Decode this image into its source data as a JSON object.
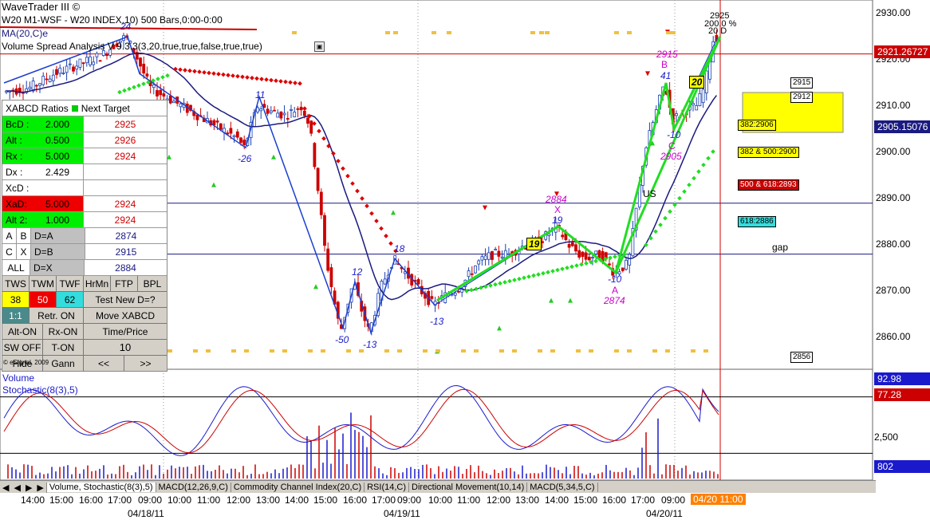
{
  "window": {
    "app_title": "WaveTrader III ©",
    "symbol_line": "W20 M1-WSF - W20 INDEX,10) 500 Bars,0:00-0:00",
    "study1": "MA(20,C)e",
    "study2": "Volume Spread Analysis V 9.3.3(3,20,true,true,false,true,true)"
  },
  "colors": {
    "up_bar": "#1a3fb0",
    "down_bar": "#cc0000",
    "ma_line": "#1a1a80",
    "wave_line": "#1a3fd0",
    "green_line": "#22dd22",
    "target_red": "#cc0000",
    "pink_label": "#cc00cc",
    "yellow_box": "#ffff00",
    "current_price_bg": "#cc0000",
    "current_time_bg": "#ff8000",
    "green_cell": "#00ee00",
    "red_cell": "#ee0000",
    "gray_cell": "#c0c0c0",
    "cyan_cell": "#33dddd"
  },
  "xabcd_panel": {
    "title": "XABCD Ratios",
    "next_target": "Next Target",
    "rows": [
      {
        "label": "BcD :",
        "value": "2.000",
        "target": "2925",
        "style": "green"
      },
      {
        "label": "Alt  :",
        "value": "0.500",
        "target": "2926",
        "style": "green"
      },
      {
        "label": "Rx  :",
        "value": "5.000",
        "target": "2924",
        "style": "green"
      },
      {
        "label": "Dx  :",
        "value": "2.429",
        "target": "",
        "style": "white"
      },
      {
        "label": "XcD :",
        "value": "",
        "target": "",
        "style": "white"
      },
      {
        "label": "XaD:",
        "value": "5.000",
        "target": "2924",
        "style": "red"
      },
      {
        "label": "Alt 2:",
        "value": "1.000",
        "target": "2924",
        "style": "green"
      }
    ],
    "map_rows": [
      {
        "a": "A",
        "b": "B",
        "eq": "D=A",
        "target": "2874"
      },
      {
        "a": "C",
        "b": "X",
        "eq": "D=B",
        "target": "2915"
      },
      {
        "a": "ALL",
        "b": "",
        "eq": "D=X",
        "target": "2884"
      }
    ],
    "buttons_row1": [
      "TWS",
      "TWM",
      "TWF",
      "HrMn",
      "FTP",
      "BPL"
    ],
    "values_row": {
      "tws": "38",
      "twm": "50",
      "twf": "62",
      "test": "Test New D=?"
    },
    "buttons_row3": {
      "ratio": "1:1",
      "retr": "Retr. ON",
      "move": "Move XABCD"
    },
    "buttons_row4": {
      "alt": "Alt-ON",
      "rx": "Rx-ON",
      "timeprice": "Time/Price"
    },
    "buttons_row5": {
      "sw": "SW OFF",
      "t": "T-ON",
      "num": "10"
    },
    "buttons_row6": {
      "hide": "Hide",
      "gann": "Gann",
      "prev": "<<",
      "next": ">>"
    },
    "copyright": "© eSignal, 2009"
  },
  "price_axis": {
    "labels": [
      "2930.00",
      "2920.00",
      "2910.00",
      "2900.00",
      "2890.00",
      "2880.00",
      "2870.00",
      "2860.00"
    ],
    "current_price": "2921.26727",
    "ma_price": "2905.15076"
  },
  "chart_labels": {
    "top_target": "2925",
    "top_pct": "200.0 %",
    "top_date": "20 D",
    "b_price": "2915",
    "b_letter": "B",
    "b_wave": "41",
    "c_letter": "C",
    "c_price": "2905",
    "c_wave": "-10",
    "x_price": "2884",
    "x_letter": "X",
    "x_wave": "19",
    "a_wave": "-10",
    "a_letter": "A",
    "a_price": "2874",
    "w24": "24",
    "w11": "11",
    "wm26": "-26",
    "w12": "12",
    "wm50": "-50",
    "wm13a": "-13",
    "w18": "18",
    "wm13b": "-13",
    "box19": "19",
    "box20": "20",
    "us": "US",
    "gap": "gap",
    "t2915": "2915",
    "t2912": "2912",
    "r382_2906": "382:2906",
    "r382_500": "382 & 500:2900",
    "r500_618": "500 & 618:2893",
    "r618": "618:2886",
    "t2856": "2856"
  },
  "lower_panel": {
    "title1": "Volume",
    "title2": "Stochastic(8(3),5)",
    "val1": "92.98",
    "val2": "77.28",
    "vol_label": "2,500",
    "vol_val": "802"
  },
  "tabs": [
    "Volume, Stochastic(8(3),5)",
    "MACD(12,26,9,C)",
    "Commodity Channel Index(20,C)",
    "RSI(14,C)",
    "Directional Movement(10,14)",
    "MACD(5,34,5,C)"
  ],
  "time_axis": {
    "times": [
      "14:00",
      "15:00",
      "16:00",
      "17:00",
      "09:00",
      "10:00",
      "11:00",
      "12:00",
      "13:00",
      "14:00",
      "15:00",
      "16:00",
      "17:00",
      "09:00",
      "10:00",
      "11:00",
      "12:00",
      "13:00",
      "14:00",
      "15:00",
      "16:00",
      "17:00",
      "09:00"
    ],
    "dates": [
      "04/18/11",
      "04/19/11",
      "04/20/11"
    ],
    "current_time": "04/20 11:00"
  },
  "chart_data": {
    "type": "candlestick",
    "title": "W20 M1-WSF - W20 INDEX,10) 500 Bars,0:00-0:00",
    "ylim": [
      2855,
      2932
    ],
    "price_ticks": [
      2930,
      2920,
      2910,
      2900,
      2890,
      2880,
      2870,
      2860
    ],
    "current_price": 2921.26727,
    "ma20_last": 2905.15076,
    "wave_points": [
      {
        "t": "04/18 14:00",
        "price": 2916
      },
      {
        "t": "04/18 17:00",
        "price": 2925,
        "label": "24"
      },
      {
        "t": "04/18 09:00",
        "price": 2915
      },
      {
        "t": "04/18 12:00",
        "price": 2901,
        "label": "-26"
      },
      {
        "t": "04/18 13:00",
        "price": 2912,
        "label": "11"
      },
      {
        "t": "04/18 15:00",
        "price": 2862,
        "label": "-50"
      },
      {
        "t": "04/18 16:00",
        "price": 2872,
        "label": "12"
      },
      {
        "t": "04/18 16:30",
        "price": 2861,
        "label": "-13"
      },
      {
        "t": "04/19 09:00",
        "price": 2877,
        "label": "18"
      },
      {
        "t": "04/19 10:00",
        "price": 2867,
        "label": "-13"
      },
      {
        "t": "04/19 14:00",
        "price": 2884,
        "label": "19"
      },
      {
        "t": "04/19 16:00",
        "price": 2874,
        "label": "-10"
      },
      {
        "t": "04/20 09:00",
        "price": 2915,
        "label": "41"
      },
      {
        "t": "04/20 09:30",
        "price": 2905,
        "label": "-10"
      },
      {
        "t": "04/20 11:00",
        "price": 2925
      }
    ],
    "ratio_levels": [
      {
        "label": "382:2906",
        "value": 2906
      },
      {
        "label": "382 & 500:2900",
        "value": 2900
      },
      {
        "label": "500 & 618:2893",
        "value": 2893
      },
      {
        "label": "618:2886",
        "value": 2886
      }
    ],
    "horizontal_lines": [
      2921.27,
      2889,
      2878
    ],
    "stochastic": {
      "k_last": 92.98,
      "d_last": 77.28
    }
  }
}
